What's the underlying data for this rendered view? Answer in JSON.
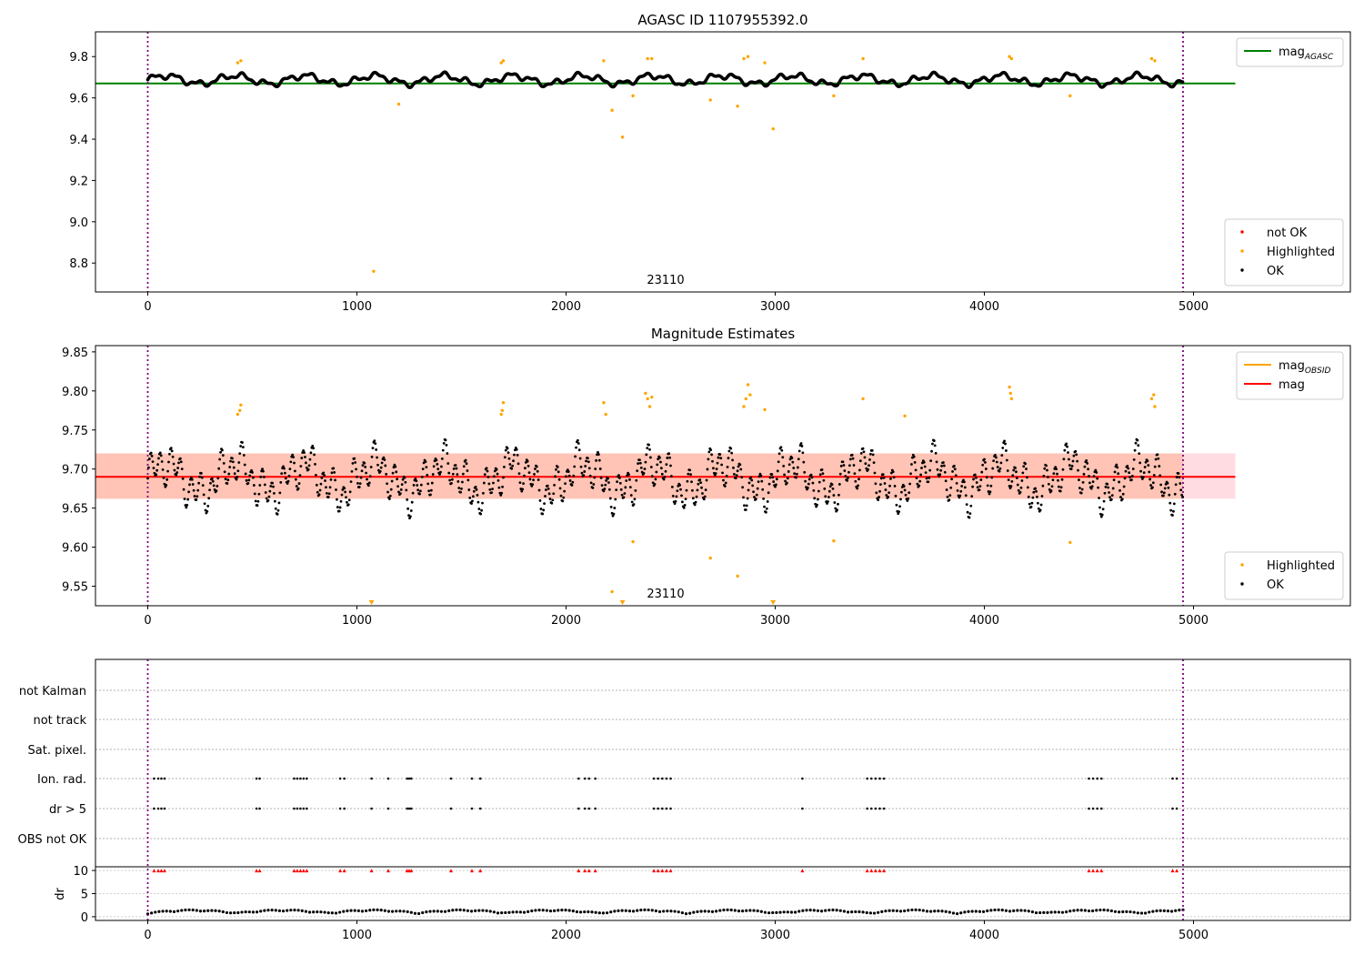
{
  "chart_data": [
    {
      "type": "scatter",
      "title": "AGASC ID 1107955392.0",
      "annotation": "23110",
      "x_ticks": [
        0,
        1000,
        2000,
        3000,
        4000,
        5000
      ],
      "y_ticks": [
        8.8,
        9.0,
        9.2,
        9.4,
        9.6,
        9.8
      ],
      "xlim": [
        -250,
        5750
      ],
      "ylim": [
        8.66,
        9.92
      ],
      "vlines": [
        0,
        4950
      ],
      "hlines": [
        {
          "name": "mag_AGASC",
          "y": 9.67,
          "x": [
            -250,
            5200
          ],
          "color": "#008000"
        }
      ],
      "legend_top": [
        {
          "label": "mag",
          "sub": "AGASC",
          "color": "#008000",
          "kind": "line"
        }
      ],
      "legend_bottom": [
        {
          "label": "not OK",
          "color": "#ff0000",
          "kind": "dot"
        },
        {
          "label": "Highlighted",
          "color": "#ffa500",
          "kind": "dot"
        },
        {
          "label": "OK",
          "color": "#000000",
          "kind": "dot"
        }
      ],
      "series": [
        {
          "name": "Highlighted",
          "color": "#ffa500",
          "points": [
            [
              430,
              9.77
            ],
            [
              445,
              9.78
            ],
            [
              1080,
              8.76
            ],
            [
              1200,
              9.57
            ],
            [
              1690,
              9.77
            ],
            [
              1700,
              9.78
            ],
            [
              2180,
              9.78
            ],
            [
              2220,
              9.54
            ],
            [
              2270,
              9.41
            ],
            [
              2320,
              9.61
            ],
            [
              2390,
              9.79
            ],
            [
              2410,
              9.79
            ],
            [
              2690,
              9.59
            ],
            [
              2820,
              9.56
            ],
            [
              2850,
              9.79
            ],
            [
              2870,
              9.8
            ],
            [
              2950,
              9.77
            ],
            [
              2990,
              9.45
            ],
            [
              3280,
              9.61
            ],
            [
              3420,
              9.79
            ],
            [
              4120,
              9.8
            ],
            [
              4130,
              9.79
            ],
            [
              4410,
              9.61
            ],
            [
              4800,
              9.79
            ],
            [
              4815,
              9.78
            ]
          ]
        }
      ]
    },
    {
      "type": "scatter",
      "title": "Magnitude Estimates",
      "annotation": "23110",
      "x_ticks": [
        0,
        1000,
        2000,
        3000,
        4000,
        5000
      ],
      "y_ticks": [
        9.55,
        9.6,
        9.65,
        9.7,
        9.75,
        9.8,
        9.85
      ],
      "y_tick_labels": [
        "9.55",
        "9.60",
        "9.65",
        "9.70",
        "9.75",
        "9.80",
        "9.85"
      ],
      "xlim": [
        -250,
        5750
      ],
      "ylim": [
        9.525,
        9.858
      ],
      "vlines": [
        0,
        4950
      ],
      "bands": [
        {
          "y": [
            9.662,
            9.72
          ],
          "x": [
            -250,
            5200
          ],
          "color": "#ffc0cb"
        },
        {
          "y": [
            9.662,
            9.72
          ],
          "x": [
            -250,
            4950
          ],
          "color": "#ffb090"
        }
      ],
      "hlines": [
        {
          "name": "mag",
          "y": 9.69,
          "x": [
            -250,
            5200
          ],
          "color": "#ff0000"
        }
      ],
      "legend_top": [
        {
          "label": "mag",
          "sub": "OBSID",
          "color": "#ffa500",
          "kind": "line"
        },
        {
          "label": "mag",
          "sub": "",
          "color": "#ff0000",
          "kind": "line"
        }
      ],
      "legend_bottom": [
        {
          "label": "Highlighted",
          "color": "#ffa500",
          "kind": "dot"
        },
        {
          "label": "OK",
          "color": "#000000",
          "kind": "dot"
        }
      ],
      "series": [
        {
          "name": "Highlighted",
          "color": "#ffa500",
          "points": [
            [
              430,
              9.77
            ],
            [
              440,
              9.775
            ],
            [
              445,
              9.782
            ],
            [
              1690,
              9.77
            ],
            [
              1695,
              9.775
            ],
            [
              1700,
              9.785
            ],
            [
              2180,
              9.785
            ],
            [
              2190,
              9.77
            ],
            [
              2220,
              9.543
            ],
            [
              2320,
              9.607
            ],
            [
              2380,
              9.797
            ],
            [
              2390,
              9.79
            ],
            [
              2400,
              9.78
            ],
            [
              2410,
              9.792
            ],
            [
              2690,
              9.586
            ],
            [
              2820,
              9.563
            ],
            [
              2850,
              9.78
            ],
            [
              2860,
              9.79
            ],
            [
              2870,
              9.808
            ],
            [
              2880,
              9.795
            ],
            [
              2950,
              9.776
            ],
            [
              3280,
              9.608
            ],
            [
              3420,
              9.79
            ],
            [
              3620,
              9.768
            ],
            [
              4120,
              9.805
            ],
            [
              4125,
              9.797
            ],
            [
              4130,
              9.79
            ],
            [
              4410,
              9.606
            ],
            [
              4800,
              9.79
            ],
            [
              4810,
              9.795
            ],
            [
              4815,
              9.78
            ]
          ]
        },
        {
          "name": "Highlighted below",
          "color": "#ffa500",
          "marker": "triangle",
          "points": [
            [
              1070,
              9.525
            ],
            [
              2270,
              9.525
            ],
            [
              2990,
              9.525
            ]
          ]
        }
      ]
    },
    {
      "type": "scatter",
      "x_ticks": [
        0,
        1000,
        2000,
        3000,
        4000,
        5000
      ],
      "xlim": [
        -250,
        5750
      ],
      "vlines": [
        0,
        4950
      ],
      "flags": [
        "not Kalman",
        "not track",
        "Sat. pixel.",
        "Ion. rad.",
        "dr > 5",
        "OBS not OK"
      ],
      "flag_events_x": [
        30,
        50,
        65,
        80,
        520,
        535,
        700,
        715,
        730,
        745,
        760,
        920,
        940,
        1070,
        1150,
        1240,
        1250,
        1260,
        1450,
        1550,
        1590,
        2060,
        2090,
        2110,
        2140,
        2420,
        2440,
        2460,
        2480,
        2500,
        3130,
        3440,
        3460,
        3480,
        3500,
        3520,
        4500,
        4520,
        4540,
        4560,
        4900,
        4920
      ],
      "dr_ylabel": "dr",
      "dr_ticks": [
        0,
        5,
        10
      ],
      "dr_ylim": [
        -0.8,
        10.8
      ],
      "dr_clip_value": 10
    }
  ]
}
